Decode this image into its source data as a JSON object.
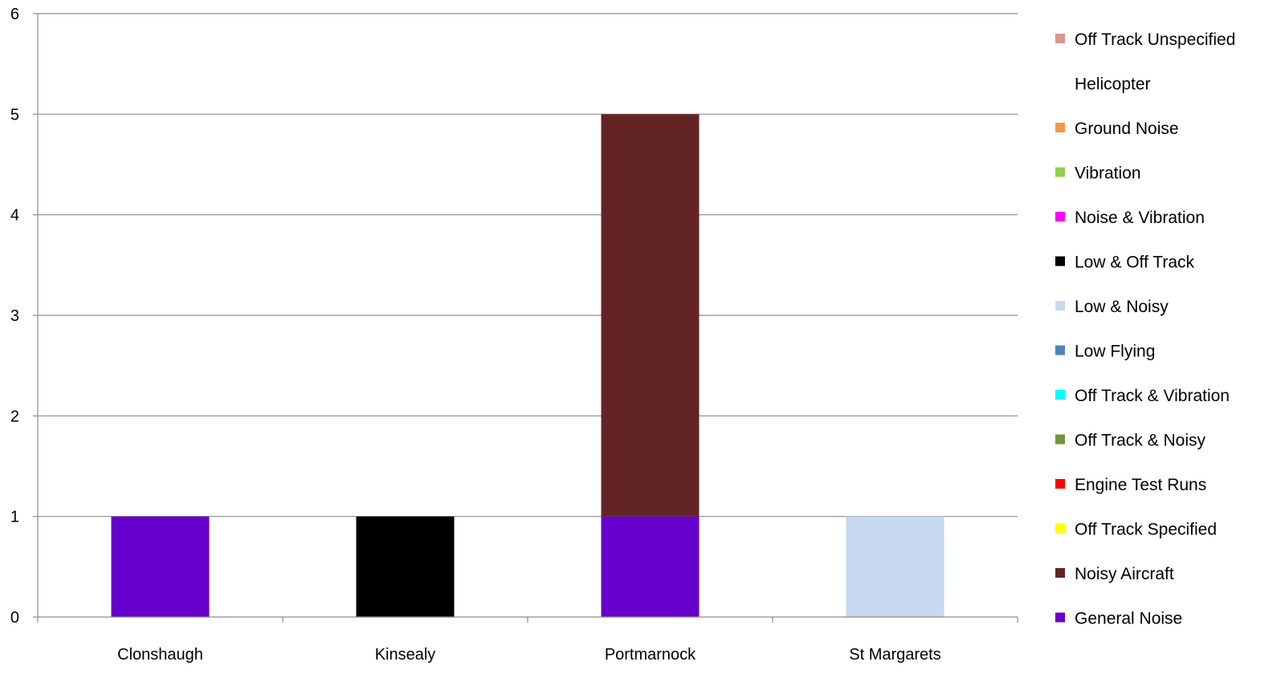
{
  "chart_data": {
    "type": "bar",
    "stacked": true,
    "title": "",
    "xlabel": "",
    "ylabel": "",
    "categories": [
      "Clonshaugh",
      "Kinsealy",
      "Portmarnock",
      "St Margarets"
    ],
    "ylim": [
      0,
      6
    ],
    "yticks": [
      "0",
      "1",
      "2",
      "3",
      "4",
      "5",
      "6"
    ],
    "grid": "horizontal",
    "legend_position": "right",
    "series": [
      {
        "name": "General Noise",
        "color": "#6600CC",
        "values": [
          1,
          0,
          1,
          0
        ]
      },
      {
        "name": "Noisy Aircraft",
        "color": "#632523",
        "values": [
          0,
          0,
          4,
          0
        ]
      },
      {
        "name": "Off Track Specified",
        "color": "#FFFF00",
        "values": [
          0,
          0,
          0,
          0
        ]
      },
      {
        "name": "Engine Test Runs",
        "color": "#FF0000",
        "values": [
          0,
          0,
          0,
          0
        ]
      },
      {
        "name": "Off Track & Noisy",
        "color": "#77933C",
        "values": [
          0,
          0,
          0,
          0
        ]
      },
      {
        "name": "Off Track & Vibration",
        "color": "#00FFFF",
        "values": [
          0,
          0,
          0,
          0
        ]
      },
      {
        "name": "Low Flying",
        "color": "#4F81BD",
        "values": [
          0,
          0,
          0,
          0
        ]
      },
      {
        "name": "Low & Noisy",
        "color": "#C6D9F0",
        "values": [
          0,
          0,
          0,
          1
        ]
      },
      {
        "name": "Low & Off Track",
        "color": "#000000",
        "values": [
          0,
          1,
          0,
          0
        ]
      },
      {
        "name": "Noise & Vibration",
        "color": "#FF00FF",
        "values": [
          0,
          0,
          0,
          0
        ]
      },
      {
        "name": "Vibration",
        "color": "#92D050",
        "values": [
          0,
          0,
          0,
          0
        ]
      },
      {
        "name": "Ground Noise",
        "color": "#F79646",
        "values": [
          0,
          0,
          0,
          0
        ]
      },
      {
        "name": "Helicopter",
        "color": "#FFFFFF",
        "values": [
          0,
          0,
          0,
          0
        ]
      },
      {
        "name": "Off Track Unspecified",
        "color": "#D99694",
        "values": [
          0,
          0,
          0,
          0
        ]
      }
    ]
  }
}
